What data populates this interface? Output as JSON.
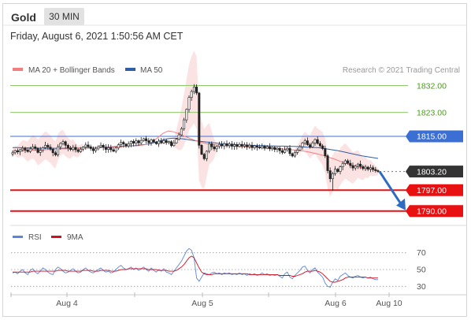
{
  "header": {
    "instrument": "Gold",
    "timeframe": "30 MIN",
    "datetime": "Friday, August 6, 2021 1:50:56 AM CET"
  },
  "legend": {
    "ma20_label": "MA 20 + Bollinger Bands",
    "ma50_label": "MA 50",
    "rsi_label": "RSI",
    "rsi_ma_label": "9MA"
  },
  "attribution": "Research © 2021 Trading Central",
  "colors": {
    "ma20": "#f08080",
    "ma50": "#2f5ea8",
    "resistance_green": "#8cc96a",
    "pivot_blue": "#3b6fd4",
    "support_red": "#e81010",
    "current_dark": "#333333",
    "arrow": "#2e6cc4",
    "rsi": "#5b86d6",
    "rsi_ma": "#d01020",
    "candle": "#222222"
  },
  "chart_data": [
    {
      "type": "candlestick",
      "price_range": [
        1786.5,
        1834.5
      ],
      "x_ticks": [
        "Aug 4",
        "Aug 5",
        "Aug 6",
        "Aug 10"
      ],
      "levels": [
        {
          "value": 1832.0,
          "label": "1832.00",
          "kind": "resistance"
        },
        {
          "value": 1823.0,
          "label": "1823.00",
          "kind": "resistance"
        },
        {
          "value": 1815.0,
          "label": "1815.00",
          "kind": "pivot"
        },
        {
          "value": 1803.2,
          "label": "1803.20",
          "kind": "current"
        },
        {
          "value": 1797.0,
          "label": "1797.00",
          "kind": "support"
        },
        {
          "value": 1790.0,
          "label": "1790.00",
          "kind": "support"
        }
      ],
      "close": [
        1809.5,
        1810.2,
        1809.8,
        1810.5,
        1811.0,
        1810.4,
        1809.9,
        1810.8,
        1811.5,
        1810.9,
        1809.6,
        1810.3,
        1811.2,
        1812.0,
        1811.4,
        1810.7,
        1809.5,
        1808.8,
        1811.5,
        1812.6,
        1813.2,
        1812.0,
        1811.1,
        1810.6,
        1811.3,
        1810.5,
        1809.9,
        1810.7,
        1811.4,
        1812.1,
        1811.5,
        1810.9,
        1810.2,
        1810.8,
        1811.5,
        1812.0,
        1811.3,
        1810.6,
        1811.2,
        1810.5,
        1810.0,
        1811.1,
        1812.2,
        1813.0,
        1812.4,
        1811.8,
        1812.5,
        1813.3,
        1812.7,
        1813.5,
        1812.8,
        1813.6,
        1814.2,
        1813.5,
        1812.9,
        1813.8,
        1813.1,
        1812.5,
        1813.4,
        1812.8,
        1813.6,
        1812.9,
        1813.2,
        1811.9,
        1812.8,
        1814.0,
        1815.5,
        1817.5,
        1820.5,
        1824.0,
        1828.0,
        1830.0,
        1831.5,
        1829.5,
        1812.0,
        1809.0,
        1807.5,
        1810.0,
        1812.5,
        1811.5,
        1810.8,
        1811.6,
        1812.3,
        1811.8,
        1812.5,
        1811.9,
        1812.4,
        1811.7,
        1812.2,
        1811.6,
        1812.3,
        1811.7,
        1812.1,
        1811.5,
        1812.0,
        1811.2,
        1811.8,
        1811.4,
        1811.1,
        1811.7,
        1811.0,
        1811.5,
        1810.8,
        1811.3,
        1810.6,
        1811.0,
        1810.2,
        1809.6,
        1810.5,
        1811.0,
        1809.2,
        1808.4,
        1809.6,
        1810.4,
        1811.5,
        1812.8,
        1813.5,
        1812.2,
        1811.4,
        1812.8,
        1813.9,
        1812.6,
        1811.8,
        1810.9,
        1808.5,
        1803.5,
        1800.8,
        1802.5,
        1804.0,
        1803.2,
        1804.8,
        1805.9,
        1806.8,
        1806.0,
        1805.2,
        1804.4,
        1805.0,
        1805.7,
        1804.9,
        1804.2,
        1804.7,
        1804.0,
        1804.5,
        1803.9,
        1803.5,
        1803.2
      ],
      "ma20": [
        1810.0,
        1810.1,
        1810.2,
        1810.3,
        1810.4,
        1810.5,
        1810.5,
        1810.6,
        1810.7,
        1810.8,
        1810.8,
        1810.9,
        1811.0,
        1811.0,
        1811.1,
        1811.2,
        1811.2,
        1811.3,
        1811.3,
        1811.4,
        1811.5,
        1811.6,
        1811.7,
        1811.8,
        1812.0,
        1812.3,
        1813.2,
        1814.5,
        1816.0,
        1816.8,
        1816.5,
        1815.8,
        1815.0,
        1814.3,
        1813.6,
        1813.0,
        1812.6,
        1812.3,
        1812.1,
        1811.9,
        1811.8,
        1811.7,
        1811.6,
        1811.5,
        1811.4,
        1811.3,
        1811.2,
        1811.1,
        1811.0,
        1810.9,
        1810.8,
        1810.7,
        1810.5,
        1810.3,
        1810.1,
        1809.8,
        1809.4,
        1809.0,
        1808.5,
        1807.9,
        1807.3,
        1806.6,
        1806.0,
        1805.4,
        1804.9,
        1804.4,
        1804.1,
        1803.8,
        1803.5
      ],
      "ma50": [
        1811.2,
        1811.2,
        1811.1,
        1811.1,
        1811.1,
        1811.0,
        1811.0,
        1811.0,
        1811.0,
        1811.0,
        1811.0,
        1811.0,
        1811.1,
        1811.1,
        1811.2,
        1811.2,
        1811.3,
        1811.4,
        1811.5,
        1811.6,
        1811.7,
        1811.8,
        1811.9,
        1812.1,
        1812.3,
        1812.6,
        1813.1,
        1813.7,
        1814.2,
        1814.4,
        1814.3,
        1814.1,
        1813.8,
        1813.5,
        1813.3,
        1813.1,
        1812.9,
        1812.7,
        1812.5,
        1812.4,
        1812.3,
        1812.2,
        1812.1,
        1812.0,
        1811.9,
        1811.9,
        1811.8,
        1811.8,
        1811.7,
        1811.7,
        1811.6,
        1811.6,
        1811.5,
        1811.4,
        1811.3,
        1811.2,
        1811.0,
        1810.7,
        1810.4,
        1810.1,
        1809.7,
        1809.3,
        1808.9,
        1808.5,
        1808.2,
        1807.9,
        1807.6
      ],
      "forecast_target": 1790.0,
      "last_price": 1803.2
    },
    {
      "type": "line",
      "name": "RSI",
      "ylim": [
        20,
        80
      ],
      "y_ticks": [
        70,
        50,
        30
      ],
      "reference_lines": [
        70,
        50,
        30
      ],
      "series": [
        {
          "name": "RSI",
          "values": [
            46,
            47,
            45,
            48,
            50,
            46,
            44,
            49,
            51,
            47,
            45,
            48,
            52,
            50,
            47,
            45,
            44,
            50,
            53,
            51,
            48,
            46,
            47,
            49,
            51,
            48,
            46,
            47,
            50,
            52,
            49,
            47,
            46,
            48,
            50,
            52,
            49,
            47,
            48,
            46,
            47,
            50,
            53,
            55,
            52,
            50,
            51,
            53,
            50,
            52,
            49,
            51,
            53,
            50,
            48,
            52,
            49,
            47,
            50,
            48,
            51,
            47,
            46,
            44,
            48,
            52,
            56,
            60,
            66,
            72,
            75,
            73,
            64,
            40,
            36,
            41,
            46,
            45,
            44,
            46,
            47,
            45,
            46,
            44,
            46,
            45,
            46,
            44,
            45,
            44,
            46,
            44,
            45,
            43,
            45,
            44,
            45,
            43,
            44,
            46,
            44,
            45,
            43,
            44,
            43,
            44,
            42,
            40,
            45,
            47,
            41,
            39,
            43,
            46,
            49,
            53,
            54,
            49,
            46,
            50,
            52,
            47,
            44,
            41,
            34,
            30,
            29,
            35,
            39,
            37,
            42,
            44,
            46,
            43,
            41,
            40,
            42,
            43,
            41,
            40,
            41,
            40,
            41,
            39,
            38,
            38
          ]
        },
        {
          "name": "9MA",
          "values": [
            47,
            47,
            47,
            47,
            47,
            47,
            47,
            47,
            48,
            48,
            48,
            48,
            48,
            48,
            48,
            48,
            48,
            48,
            49,
            49,
            49,
            49,
            48,
            48,
            48,
            48,
            48,
            48,
            49,
            49,
            49,
            49,
            48,
            48,
            48,
            49,
            49,
            49,
            49,
            48,
            48,
            48,
            49,
            50,
            50,
            50,
            51,
            51,
            51,
            51,
            51,
            51,
            51,
            51,
            50,
            50,
            50,
            50,
            49,
            49,
            49,
            49,
            48,
            48,
            48,
            49,
            51,
            53,
            56,
            60,
            64,
            66,
            64,
            58,
            52,
            47,
            45,
            44,
            44,
            44,
            45,
            45,
            45,
            45,
            45,
            45,
            45,
            45,
            45,
            45,
            45,
            45,
            45,
            45,
            44,
            44,
            44,
            44,
            44,
            44,
            44,
            44,
            44,
            44,
            44,
            44,
            43,
            43,
            43,
            43,
            43,
            42,
            42,
            43,
            44,
            45,
            47,
            48,
            48,
            48,
            49,
            48,
            47,
            45,
            42,
            39,
            36,
            35,
            35,
            36,
            37,
            38,
            40,
            41,
            41,
            41,
            41,
            41,
            41,
            41,
            41,
            40,
            40,
            40,
            40,
            40
          ]
        }
      ]
    }
  ]
}
